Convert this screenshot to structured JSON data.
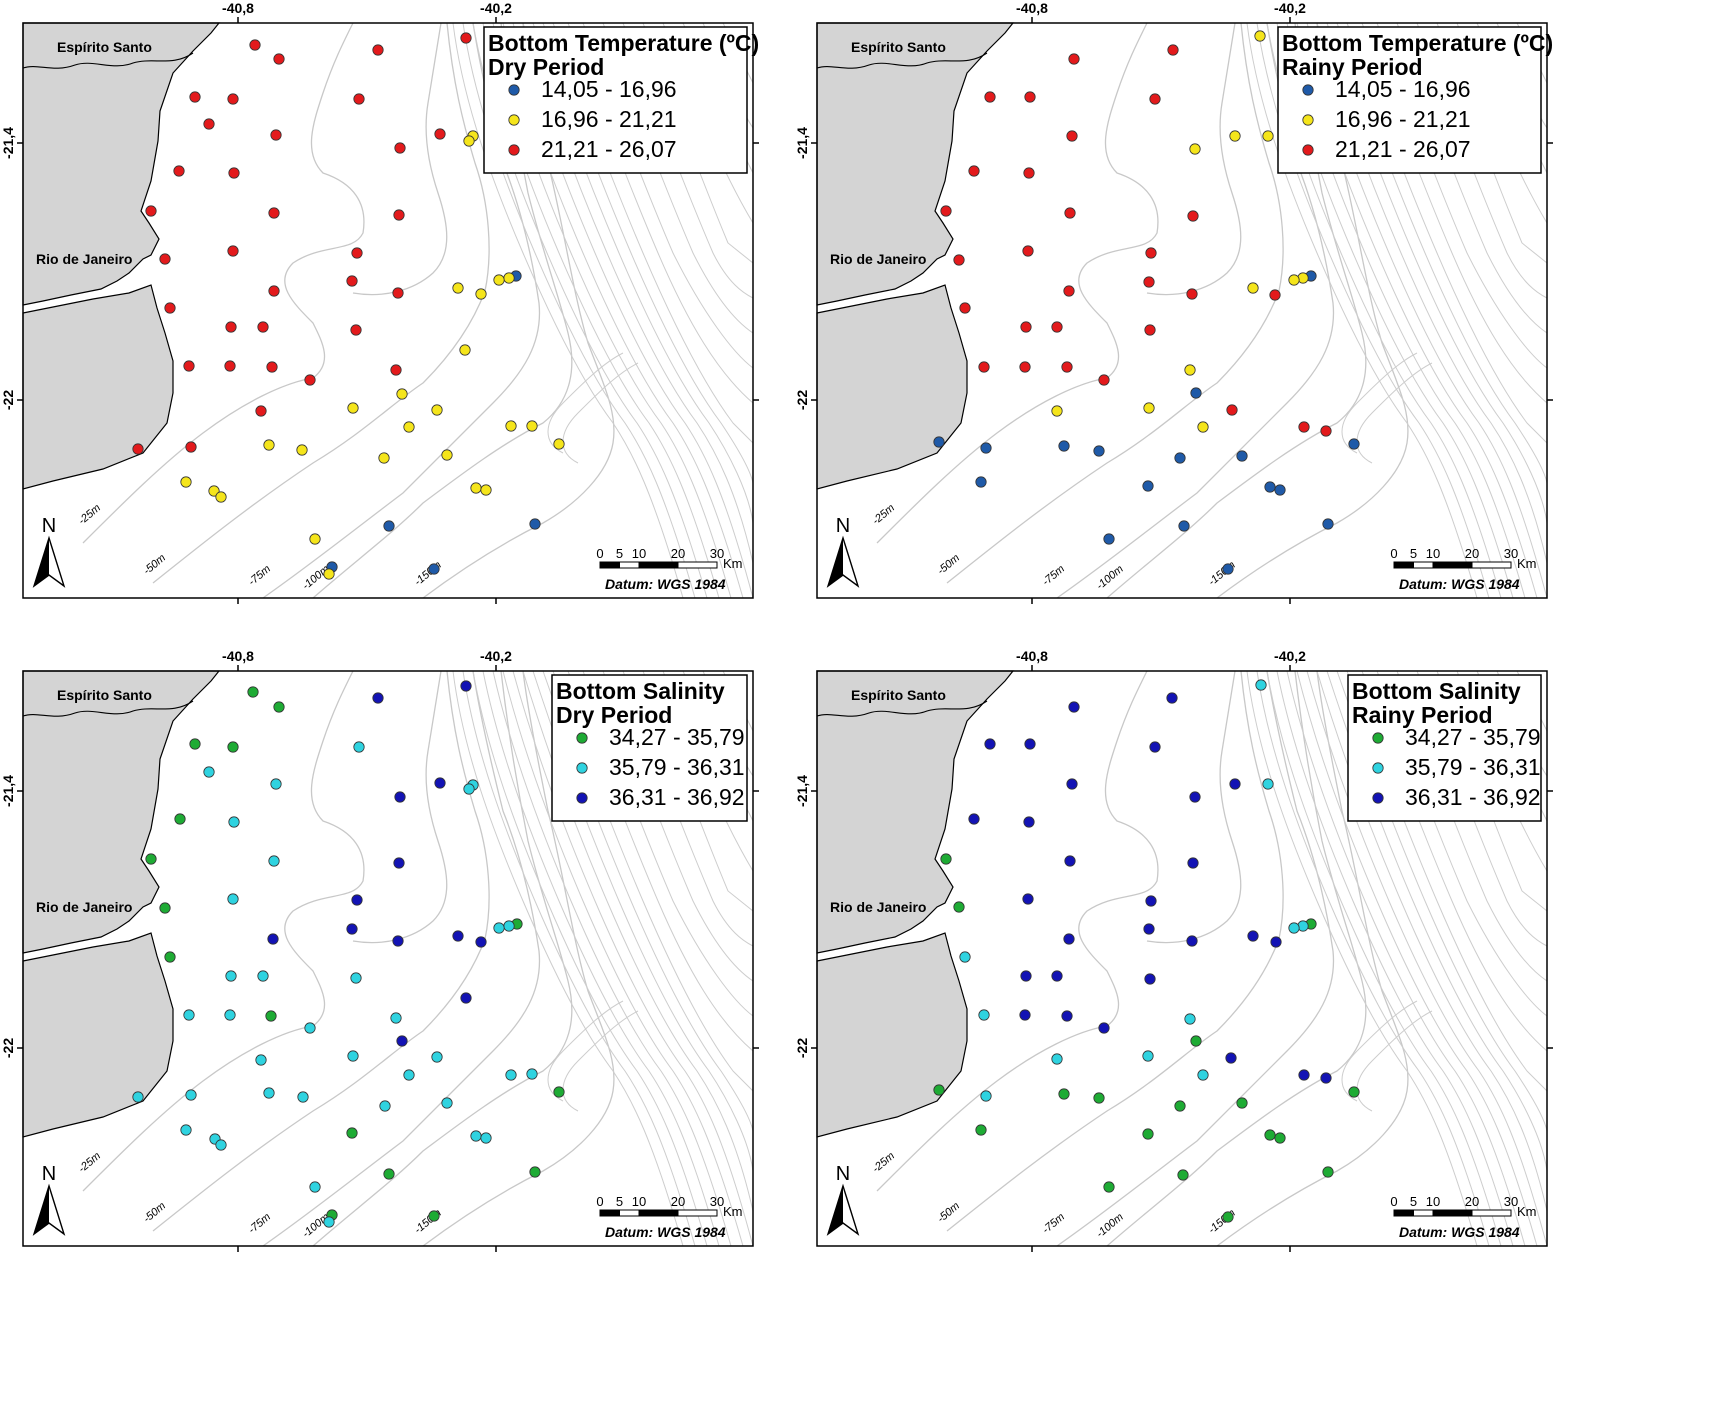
{
  "maps": [
    {
      "id": "temp-dry",
      "legend_title": [
        "Bottom Temperature (ºC)",
        "Dry Period"
      ],
      "classes": [
        {
          "label": "14,05 - 16,96",
          "color": "#1f5aa8"
        },
        {
          "label": "16,96 - 21,21",
          "color": "#f5e51b"
        },
        {
          "label": "21,21 - 26,07",
          "color": "#e31a1c"
        }
      ],
      "legend_width": 263,
      "stations": [
        [
          255,
          45,
          2
        ],
        [
          279,
          59,
          2
        ],
        [
          378,
          50,
          2
        ],
        [
          466,
          38,
          2
        ],
        [
          195,
          97,
          2
        ],
        [
          233,
          99,
          2
        ],
        [
          359,
          99,
          2
        ],
        [
          209,
          124,
          2
        ],
        [
          276,
          135,
          2
        ],
        [
          440,
          134,
          2
        ],
        [
          473,
          136,
          1
        ],
        [
          469,
          141,
          1
        ],
        [
          400,
          148,
          2
        ],
        [
          179,
          171,
          2
        ],
        [
          234,
          173,
          2
        ],
        [
          151,
          211,
          2
        ],
        [
          274,
          213,
          2
        ],
        [
          399,
          215,
          2
        ],
        [
          233,
          251,
          2
        ],
        [
          357,
          253,
          2
        ],
        [
          165,
          259,
          2
        ],
        [
          516,
          276,
          0
        ],
        [
          509,
          278,
          1
        ],
        [
          499,
          280,
          1
        ],
        [
          352,
          281,
          2
        ],
        [
          458,
          288,
          1
        ],
        [
          481,
          294,
          1
        ],
        [
          274,
          291,
          2
        ],
        [
          398,
          293,
          2
        ],
        [
          170,
          308,
          2
        ],
        [
          231,
          327,
          2
        ],
        [
          263,
          327,
          2
        ],
        [
          356,
          330,
          2
        ],
        [
          465,
          350,
          1
        ],
        [
          189,
          366,
          2
        ],
        [
          230,
          366,
          2
        ],
        [
          272,
          367,
          2
        ],
        [
          396,
          370,
          2
        ],
        [
          310,
          380,
          2
        ],
        [
          402,
          394,
          1
        ],
        [
          353,
          408,
          1
        ],
        [
          437,
          410,
          1
        ],
        [
          261,
          411,
          2
        ],
        [
          409,
          427,
          1
        ],
        [
          511,
          426,
          1
        ],
        [
          532,
          426,
          1
        ],
        [
          559,
          444,
          1
        ],
        [
          138,
          449,
          2
        ],
        [
          191,
          447,
          2
        ],
        [
          269,
          445,
          1
        ],
        [
          302,
          450,
          1
        ],
        [
          447,
          455,
          1
        ],
        [
          384,
          458,
          1
        ],
        [
          186,
          482,
          1
        ],
        [
          214,
          491,
          1
        ],
        [
          221,
          497,
          1
        ],
        [
          476,
          488,
          1
        ],
        [
          486,
          490,
          1
        ],
        [
          535,
          524,
          0
        ],
        [
          389,
          526,
          0
        ],
        [
          315,
          539,
          1
        ],
        [
          332,
          567,
          0
        ],
        [
          329,
          574,
          1
        ],
        [
          434,
          569,
          0
        ]
      ]
    },
    {
      "id": "temp-rainy",
      "legend_title": [
        "Bottom Temperature (ºC)",
        "Rainy Period"
      ],
      "classes": [
        {
          "label": "14,05 - 16,96",
          "color": "#1f5aa8"
        },
        {
          "label": "16,96 - 21,21",
          "color": "#f5e51b"
        },
        {
          "label": "21,21 - 26,07",
          "color": "#e31a1c"
        }
      ],
      "legend_width": 263,
      "stations": [
        [
          1260,
          36,
          1
        ],
        [
          1074,
          59,
          2
        ],
        [
          1173,
          50,
          2
        ],
        [
          990,
          97,
          2
        ],
        [
          1030,
          97,
          2
        ],
        [
          1155,
          99,
          2
        ],
        [
          1235,
          136,
          1
        ],
        [
          1268,
          136,
          1
        ],
        [
          1072,
          136,
          2
        ],
        [
          1195,
          149,
          1
        ],
        [
          974,
          171,
          2
        ],
        [
          1029,
          173,
          2
        ],
        [
          946,
          211,
          2
        ],
        [
          1070,
          213,
          2
        ],
        [
          1193,
          216,
          2
        ],
        [
          1028,
          251,
          2
        ],
        [
          1151,
          253,
          2
        ],
        [
          959,
          260,
          2
        ],
        [
          1311,
          276,
          0
        ],
        [
          1303,
          278,
          1
        ],
        [
          1294,
          280,
          1
        ],
        [
          1149,
          282,
          2
        ],
        [
          1253,
          288,
          1
        ],
        [
          1275,
          295,
          2
        ],
        [
          1069,
          291,
          2
        ],
        [
          1192,
          294,
          2
        ],
        [
          965,
          308,
          2
        ],
        [
          1026,
          327,
          2
        ],
        [
          1057,
          327,
          2
        ],
        [
          1150,
          330,
          2
        ],
        [
          984,
          367,
          2
        ],
        [
          1025,
          367,
          2
        ],
        [
          1067,
          367,
          2
        ],
        [
          1190,
          370,
          1
        ],
        [
          1104,
          380,
          2
        ],
        [
          1196,
          393,
          0
        ],
        [
          1057,
          411,
          1
        ],
        [
          1149,
          408,
          1
        ],
        [
          1232,
          410,
          2
        ],
        [
          1203,
          427,
          1
        ],
        [
          1304,
          427,
          2
        ],
        [
          1326,
          431,
          2
        ],
        [
          1354,
          444,
          0
        ],
        [
          939,
          442,
          0
        ],
        [
          986,
          448,
          0
        ],
        [
          1064,
          446,
          0
        ],
        [
          1099,
          451,
          0
        ],
        [
          1242,
          456,
          0
        ],
        [
          1180,
          458,
          0
        ],
        [
          981,
          482,
          0
        ],
        [
          1270,
          487,
          0
        ],
        [
          1280,
          490,
          0
        ],
        [
          1148,
          486,
          0
        ],
        [
          1328,
          524,
          0
        ],
        [
          1184,
          526,
          0
        ],
        [
          1109,
          539,
          0
        ],
        [
          1228,
          569,
          0
        ]
      ]
    },
    {
      "id": "sal-dry",
      "legend_title": [
        "Bottom Salinity",
        "Dry Period"
      ],
      "classes": [
        {
          "label": "34,27 - 35,79",
          "color": "#1eab34"
        },
        {
          "label": "35,79 - 36,31",
          "color": "#2fd3e0"
        },
        {
          "label": "36,31 - 36,92",
          "color": "#1313b4"
        }
      ],
      "legend_width": 195,
      "stations": [
        [
          253,
          692,
          0
        ],
        [
          279,
          707,
          0
        ],
        [
          378,
          698,
          2
        ],
        [
          466,
          686,
          2
        ],
        [
          195,
          744,
          0
        ],
        [
          233,
          747,
          0
        ],
        [
          359,
          747,
          1
        ],
        [
          209,
          772,
          1
        ],
        [
          276,
          784,
          1
        ],
        [
          440,
          783,
          2
        ],
        [
          473,
          785,
          1
        ],
        [
          469,
          789,
          1
        ],
        [
          400,
          797,
          2
        ],
        [
          180,
          819,
          0
        ],
        [
          234,
          822,
          1
        ],
        [
          151,
          859,
          0
        ],
        [
          274,
          861,
          1
        ],
        [
          399,
          863,
          2
        ],
        [
          233,
          899,
          1
        ],
        [
          357,
          900,
          2
        ],
        [
          165,
          908,
          0
        ],
        [
          517,
          924,
          0
        ],
        [
          509,
          926,
          1
        ],
        [
          499,
          928,
          1
        ],
        [
          352,
          929,
          2
        ],
        [
          458,
          936,
          2
        ],
        [
          481,
          942,
          2
        ],
        [
          273,
          939,
          2
        ],
        [
          398,
          941,
          2
        ],
        [
          170,
          957,
          0
        ],
        [
          231,
          976,
          1
        ],
        [
          263,
          976,
          1
        ],
        [
          356,
          978,
          1
        ],
        [
          466,
          998,
          2
        ],
        [
          189,
          1015,
          1
        ],
        [
          230,
          1015,
          1
        ],
        [
          271,
          1016,
          0
        ],
        [
          396,
          1018,
          1
        ],
        [
          310,
          1028,
          1
        ],
        [
          402,
          1041,
          2
        ],
        [
          353,
          1056,
          1
        ],
        [
          437,
          1057,
          1
        ],
        [
          261,
          1060,
          1
        ],
        [
          409,
          1075,
          1
        ],
        [
          511,
          1075,
          1
        ],
        [
          532,
          1074,
          1
        ],
        [
          559,
          1092,
          0
        ],
        [
          138,
          1097,
          1
        ],
        [
          191,
          1095,
          1
        ],
        [
          269,
          1093,
          1
        ],
        [
          303,
          1097,
          1
        ],
        [
          447,
          1103,
          1
        ],
        [
          385,
          1106,
          1
        ],
        [
          352,
          1133,
          0
        ],
        [
          186,
          1130,
          1
        ],
        [
          215,
          1139,
          1
        ],
        [
          221,
          1145,
          1
        ],
        [
          476,
          1136,
          1
        ],
        [
          486,
          1138,
          1
        ],
        [
          535,
          1172,
          0
        ],
        [
          389,
          1174,
          0
        ],
        [
          315,
          1187,
          1
        ],
        [
          332,
          1215,
          0
        ],
        [
          329,
          1222,
          1
        ],
        [
          434,
          1216,
          0
        ]
      ]
    },
    {
      "id": "sal-rainy",
      "legend_title": [
        "Bottom Salinity",
        "Rainy Period"
      ],
      "classes": [
        {
          "label": "34,27 - 35,79",
          "color": "#1eab34"
        },
        {
          "label": "35,79 - 36,31",
          "color": "#2fd3e0"
        },
        {
          "label": "36,31 - 36,92",
          "color": "#1313b4"
        }
      ],
      "legend_width": 193,
      "stations": [
        [
          1261,
          685,
          1
        ],
        [
          1074,
          707,
          2
        ],
        [
          1172,
          698,
          2
        ],
        [
          990,
          744,
          2
        ],
        [
          1030,
          744,
          2
        ],
        [
          1155,
          747,
          2
        ],
        [
          1235,
          784,
          2
        ],
        [
          1268,
          784,
          1
        ],
        [
          1072,
          784,
          2
        ],
        [
          1195,
          797,
          2
        ],
        [
          974,
          819,
          2
        ],
        [
          1029,
          822,
          2
        ],
        [
          946,
          859,
          0
        ],
        [
          1070,
          861,
          2
        ],
        [
          1193,
          863,
          2
        ],
        [
          1028,
          899,
          2
        ],
        [
          1151,
          901,
          2
        ],
        [
          959,
          907,
          0
        ],
        [
          1311,
          924,
          0
        ],
        [
          1303,
          926,
          1
        ],
        [
          1294,
          928,
          1
        ],
        [
          1149,
          929,
          2
        ],
        [
          1253,
          936,
          2
        ],
        [
          1276,
          942,
          2
        ],
        [
          1069,
          939,
          2
        ],
        [
          1192,
          941,
          2
        ],
        [
          965,
          957,
          1
        ],
        [
          1026,
          976,
          2
        ],
        [
          1057,
          976,
          2
        ],
        [
          1150,
          979,
          2
        ],
        [
          984,
          1015,
          1
        ],
        [
          1025,
          1015,
          2
        ],
        [
          1067,
          1016,
          2
        ],
        [
          1190,
          1019,
          1
        ],
        [
          1104,
          1028,
          2
        ],
        [
          1196,
          1041,
          0
        ],
        [
          1057,
          1059,
          1
        ],
        [
          1148,
          1056,
          1
        ],
        [
          1231,
          1058,
          2
        ],
        [
          1203,
          1075,
          1
        ],
        [
          1304,
          1075,
          2
        ],
        [
          1326,
          1078,
          2
        ],
        [
          1354,
          1092,
          0
        ],
        [
          939,
          1090,
          0
        ],
        [
          986,
          1096,
          1
        ],
        [
          1064,
          1094,
          0
        ],
        [
          1099,
          1098,
          0
        ],
        [
          1242,
          1103,
          0
        ],
        [
          1180,
          1106,
          0
        ],
        [
          981,
          1130,
          0
        ],
        [
          1270,
          1135,
          0
        ],
        [
          1280,
          1138,
          0
        ],
        [
          1148,
          1134,
          0
        ],
        [
          1328,
          1172,
          0
        ],
        [
          1183,
          1175,
          0
        ],
        [
          1109,
          1187,
          0
        ],
        [
          1228,
          1217,
          0
        ]
      ]
    }
  ],
  "axes": {
    "lon_labels": [
      "-40,8",
      "-40,2"
    ],
    "lat_labels": [
      "-21,4",
      "-22"
    ]
  },
  "places": {
    "es": "Espírito Santo",
    "rj": "Rio de Janeiro"
  },
  "depths": [
    "-25m",
    "-50m",
    "-75m",
    "-100m",
    "-150m"
  ],
  "scale": {
    "ticks": [
      "0",
      "5",
      "10",
      "20",
      "30"
    ],
    "unit": "Km",
    "datum": "Datum: WGS 1984"
  },
  "north_label": "N"
}
